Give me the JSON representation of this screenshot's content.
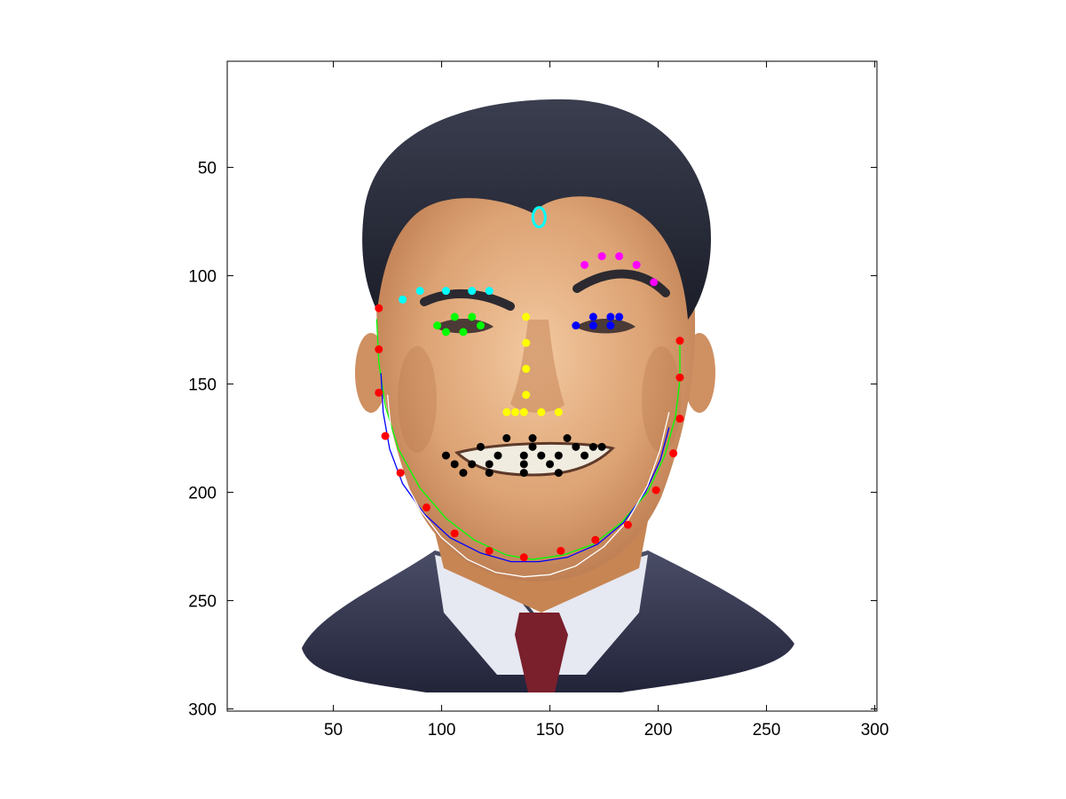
{
  "chart_data": {
    "type": "scatter",
    "title": "",
    "xlabel": "",
    "ylabel": "",
    "xlim": [
      1,
      301
    ],
    "ylim": [
      1,
      301
    ],
    "y_reversed": true,
    "grid": false,
    "legend": "none",
    "xticks": [
      50,
      100,
      150,
      200,
      250,
      300
    ],
    "yticks": [
      50,
      100,
      150,
      200,
      250,
      300
    ],
    "xtick_labels": [
      "50",
      "100",
      "150",
      "200",
      "250",
      "300"
    ],
    "ytick_labels": [
      "50",
      "100",
      "150",
      "200",
      "250",
      "300"
    ],
    "background": "face illustration",
    "series": [
      {
        "kind": "points",
        "color": "#ff0000",
        "x": [
          71,
          71,
          71,
          74,
          81,
          93,
          106,
          122,
          138,
          155,
          171,
          186,
          199,
          207,
          210,
          210,
          210
        ],
        "y": [
          115,
          134,
          154,
          174,
          191,
          207,
          219,
          227,
          230,
          227,
          222,
          215,
          199,
          182,
          166,
          147,
          130
        ]
      },
      {
        "kind": "points",
        "color": "#00ffff",
        "x": [
          82,
          90,
          102,
          114,
          122
        ],
        "y": [
          111,
          107,
          107,
          107,
          107
        ]
      },
      {
        "kind": "points",
        "color": "#ff00ff",
        "x": [
          166,
          174,
          182,
          190,
          198
        ],
        "y": [
          95,
          91,
          91,
          95,
          103
        ]
      },
      {
        "kind": "points",
        "color": "#00ff00",
        "x": [
          98,
          102,
          106,
          110,
          114,
          118
        ],
        "y": [
          123,
          126,
          119,
          126,
          119,
          123
        ]
      },
      {
        "kind": "points",
        "color": "#0000ff",
        "x": [
          162,
          170,
          170,
          178,
          178,
          182
        ],
        "y": [
          123,
          119,
          123,
          119,
          123,
          119
        ]
      },
      {
        "kind": "points",
        "color": "#ffff00",
        "x": [
          139,
          139,
          139,
          139,
          130,
          134,
          138,
          146,
          154
        ],
        "y": [
          119,
          131,
          143,
          155,
          163,
          163,
          163,
          163,
          163
        ]
      },
      {
        "kind": "points",
        "color": "#000000",
        "x": [
          102,
          106,
          110,
          114,
          118,
          122,
          122,
          126,
          130,
          138,
          138,
          138,
          142,
          142,
          146,
          150,
          154,
          154,
          158,
          162,
          166,
          170,
          174
        ],
        "y": [
          183,
          187,
          191,
          187,
          179,
          187,
          191,
          183,
          175,
          183,
          187,
          191,
          175,
          179,
          183,
          187,
          183,
          191,
          175,
          179,
          183,
          179,
          179
        ]
      },
      {
        "kind": "circle",
        "color": "#00ffff",
        "x": [
          145
        ],
        "y": [
          73
        ]
      },
      {
        "kind": "line",
        "color": "#00ff00",
        "x": [
          70,
          71,
          74,
          80,
          90,
          102,
          115,
          130,
          142,
          156,
          170,
          183,
          195,
          203,
          208,
          210,
          210
        ],
        "y": [
          120,
          140,
          160,
          180,
          198,
          212,
          222,
          229,
          231,
          229,
          224,
          214,
          200,
          183,
          165,
          148,
          132
        ]
      },
      {
        "kind": "line",
        "color": "#0000ff",
        "x": [
          72,
          73,
          76,
          82,
          92,
          104,
          118,
          132,
          145,
          158,
          172,
          184,
          194,
          201,
          205
        ],
        "y": [
          145,
          163,
          180,
          196,
          210,
          221,
          228,
          232,
          232,
          230,
          224,
          214,
          200,
          185,
          170
        ]
      },
      {
        "kind": "line",
        "color": "#ffffff",
        "x": [
          75,
          77,
          82,
          90,
          100,
          112,
          125,
          138,
          150,
          162,
          175,
          186,
          195,
          201,
          205
        ],
        "y": [
          155,
          175,
          193,
          208,
          221,
          231,
          237,
          239,
          238,
          234,
          225,
          213,
          197,
          180,
          163
        ]
      }
    ]
  }
}
